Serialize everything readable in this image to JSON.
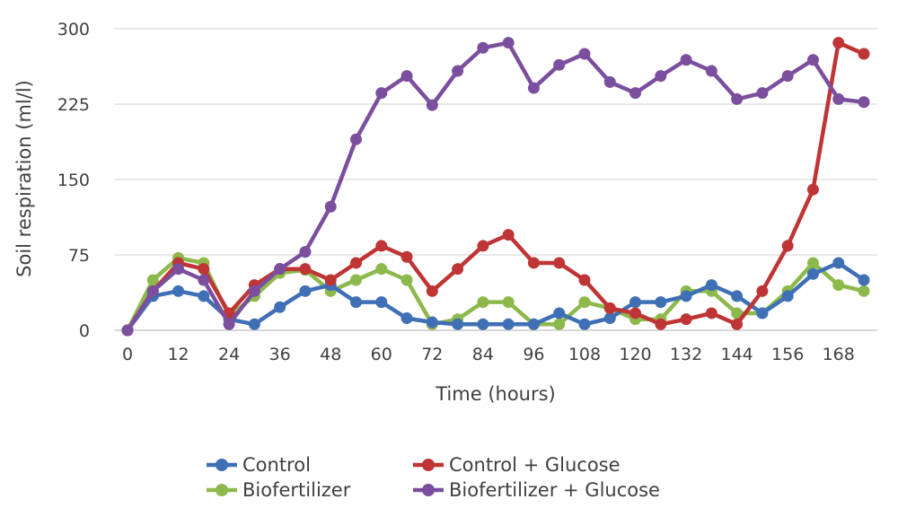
{
  "chart_data": {
    "type": "line",
    "title": "",
    "xlabel": "Time (hours)",
    "ylabel": "Soil respiration  (ml/l)",
    "x": [
      0,
      6,
      12,
      18,
      24,
      30,
      36,
      42,
      48,
      54,
      60,
      66,
      72,
      78,
      84,
      90,
      96,
      102,
      108,
      114,
      120,
      126,
      132,
      138,
      144,
      150,
      156,
      162,
      168,
      174
    ],
    "xticks": [
      "0",
      "12",
      "24",
      "36",
      "48",
      "60",
      "72",
      "84",
      "96",
      "108",
      "120",
      "132",
      "144",
      "156",
      "168"
    ],
    "xtick_values": [
      0,
      12,
      24,
      36,
      48,
      60,
      72,
      84,
      96,
      108,
      120,
      132,
      144,
      156,
      168
    ],
    "yticks": [
      "0",
      "75",
      "150",
      "225",
      "300"
    ],
    "ytick_values": [
      0,
      75,
      150,
      225,
      300
    ],
    "xlim": [
      0,
      174
    ],
    "ylim": [
      0,
      300
    ],
    "grid": "horizontal",
    "legend_position": "bottom",
    "series": [
      {
        "name": "Biofertilizer",
        "color": "#8db94c",
        "values": [
          0,
          50,
          72,
          67,
          14,
          34,
          57,
          60,
          39,
          50,
          61,
          50,
          6,
          11,
          28,
          28,
          6,
          6,
          28,
          22,
          11,
          11,
          39,
          39,
          17,
          17,
          39,
          67,
          45,
          39
        ]
      },
      {
        "name": "Control",
        "color": "#3f6fb5",
        "values": [
          0,
          34,
          39,
          34,
          11,
          6,
          23,
          39,
          45,
          28,
          28,
          12,
          8,
          6,
          6,
          6,
          6,
          17,
          6,
          12,
          28,
          28,
          34,
          45,
          34,
          17,
          34,
          56,
          67,
          50
        ]
      },
      {
        "name": "Control + Glucose",
        "color": "#bf3535",
        "values": [
          0,
          39,
          67,
          61,
          17,
          45,
          61,
          61,
          50,
          67,
          84,
          73,
          39,
          61,
          84,
          95,
          67,
          67,
          50,
          22,
          17,
          6,
          11,
          17,
          6,
          39,
          84,
          140,
          286,
          275
        ]
      },
      {
        "name": "Biofertilizer + Glucose",
        "color": "#7b4f9e",
        "values": [
          0,
          39,
          61,
          50,
          6,
          39,
          61,
          78,
          123,
          190,
          236,
          253,
          224,
          258,
          281,
          286,
          241,
          264,
          275,
          247,
          236,
          253,
          269,
          258,
          230,
          236,
          253,
          269,
          230,
          227
        ]
      }
    ],
    "legend": [
      {
        "name": "Control",
        "color": "#3f6fb5"
      },
      {
        "name": "Control + Glucose",
        "color": "#bf3535"
      },
      {
        "name": "Biofertilizer",
        "color": "#8db94c"
      },
      {
        "name": "Biofertilizer + Glucose",
        "color": "#7b4f9e"
      }
    ]
  }
}
